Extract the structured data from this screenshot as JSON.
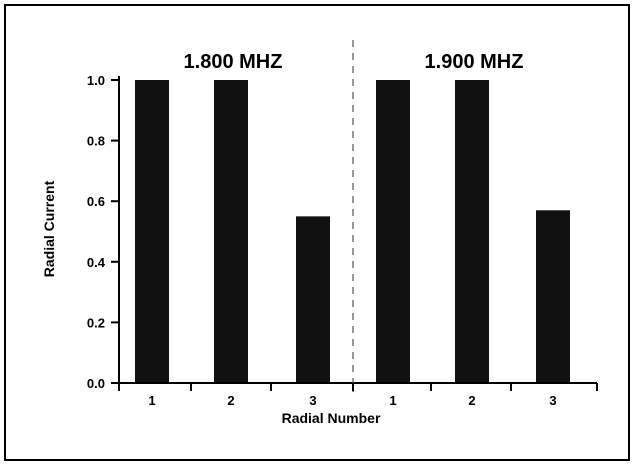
{
  "chart_data": {
    "type": "bar",
    "xlabel": "Radial Number",
    "ylabel": "Radial Current",
    "ylim": [
      0,
      1
    ],
    "yticks": [
      "0.0",
      "0.2",
      "0.4",
      "0.6",
      "0.8",
      "1.0"
    ],
    "groups": [
      {
        "title": "1.800 MHZ",
        "categories": [
          "1",
          "2",
          "3"
        ],
        "values": [
          1.0,
          1.0,
          0.55
        ]
      },
      {
        "title": "1.900 MHZ",
        "categories": [
          "1",
          "2",
          "3"
        ],
        "values": [
          1.0,
          1.0,
          0.57
        ]
      }
    ],
    "bar_color": "#111111",
    "divider": "dashed vertical line between groups",
    "grid": false
  }
}
